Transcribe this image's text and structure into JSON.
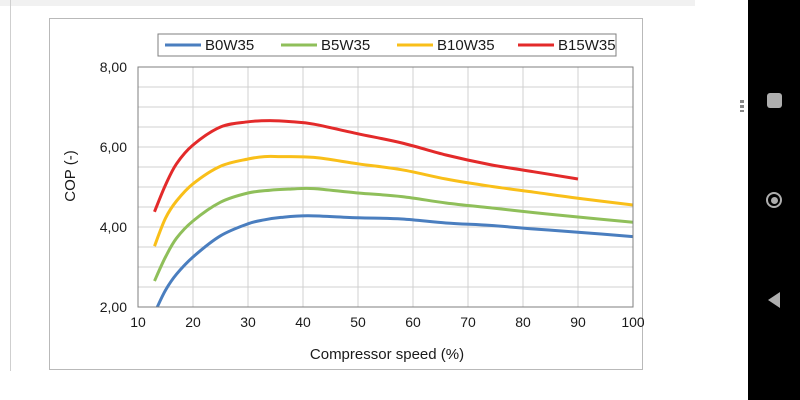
{
  "chart_data": {
    "type": "line",
    "title": "",
    "xlabel": "Compressor speed (%)",
    "ylabel": "COP (-)",
    "xlim": [
      10,
      100
    ],
    "ylim": [
      2,
      8
    ],
    "xticks": [
      "10",
      "20",
      "30",
      "40",
      "50",
      "60",
      "70",
      "80",
      "90",
      "100"
    ],
    "yticks": [
      "2,00",
      "4,00",
      "6,00",
      "8,00"
    ],
    "grid": true,
    "legend_position": "top",
    "series": [
      {
        "name": "B0W35",
        "color": "#4a7ebf",
        "x": [
          13.5,
          15,
          17,
          20,
          25,
          30,
          33,
          36,
          41,
          50,
          58,
          66,
          74,
          82,
          90,
          100
        ],
        "y": [
          2.0,
          2.42,
          2.82,
          3.25,
          3.78,
          4.08,
          4.18,
          4.24,
          4.28,
          4.23,
          4.2,
          4.1,
          4.04,
          3.95,
          3.87,
          3.76
        ]
      },
      {
        "name": "B5W35",
        "color": "#8fbf5a",
        "x": [
          13,
          15,
          17,
          20,
          25,
          30,
          34,
          38,
          42,
          50,
          58,
          66,
          74,
          82,
          90,
          100
        ],
        "y": [
          2.65,
          3.25,
          3.72,
          4.15,
          4.62,
          4.85,
          4.92,
          4.95,
          4.96,
          4.85,
          4.76,
          4.6,
          4.48,
          4.36,
          4.25,
          4.12
        ]
      },
      {
        "name": "B10W35",
        "color": "#f9bf19",
        "x": [
          13,
          15,
          17,
          20,
          25,
          30,
          33,
          36,
          42,
          50,
          58,
          66,
          74,
          82,
          90,
          100
        ],
        "y": [
          3.52,
          4.22,
          4.65,
          5.08,
          5.52,
          5.7,
          5.76,
          5.76,
          5.74,
          5.58,
          5.43,
          5.2,
          5.02,
          4.87,
          4.72,
          4.55
        ]
      },
      {
        "name": "B15W35",
        "color": "#e32a2a",
        "x": [
          13,
          15,
          17,
          20,
          25,
          30,
          34,
          38,
          42,
          50,
          58,
          66,
          74,
          82,
          90
        ],
        "y": [
          4.38,
          5.05,
          5.58,
          6.05,
          6.5,
          6.63,
          6.66,
          6.63,
          6.57,
          6.33,
          6.1,
          5.8,
          5.56,
          5.38,
          5.2
        ]
      }
    ]
  },
  "nav": {
    "icons": [
      "recent-apps-icon",
      "home-icon",
      "back-icon"
    ]
  }
}
